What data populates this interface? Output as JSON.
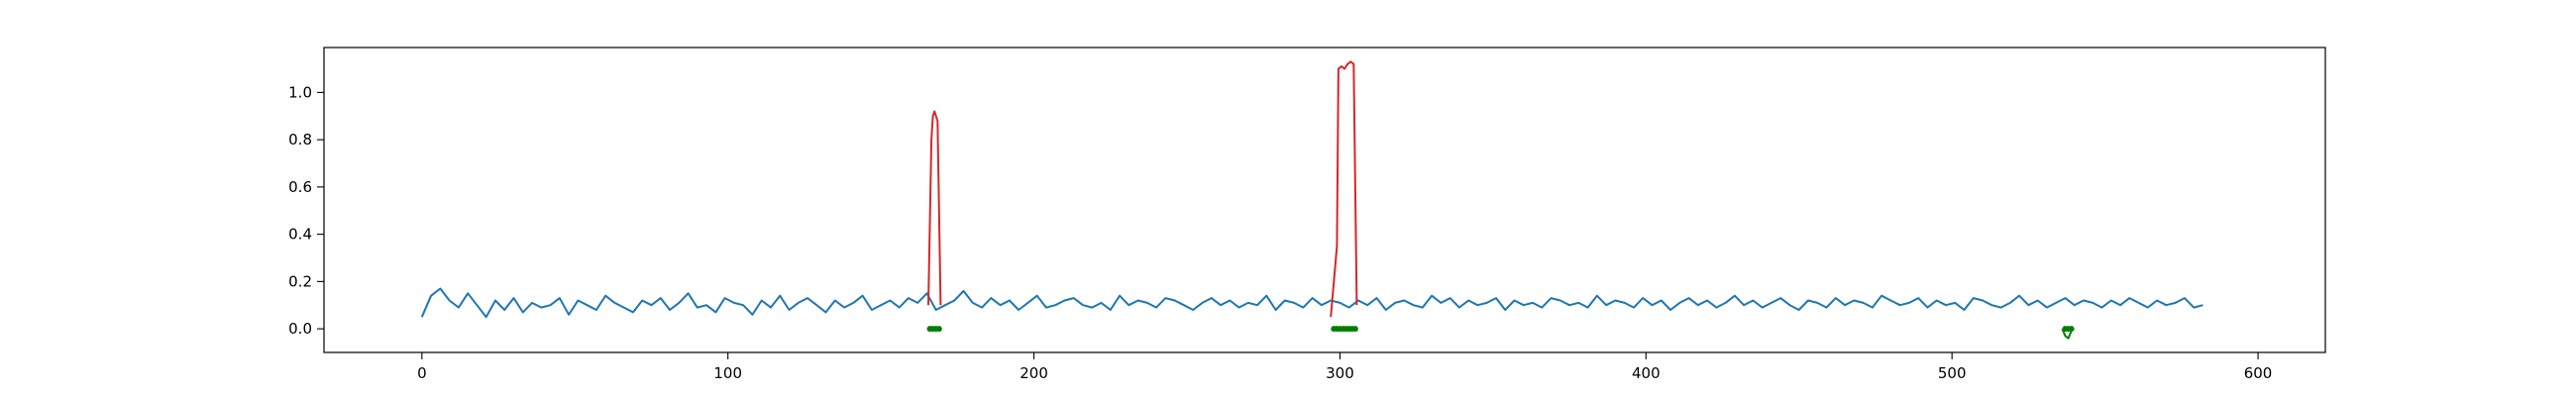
{
  "chart_data": {
    "type": "line",
    "title": "",
    "xlabel": "",
    "ylabel": "",
    "xlim": [
      -32,
      622
    ],
    "ylim": [
      -0.1,
      1.19
    ],
    "grid": false,
    "legend": "none",
    "x_ticks": [
      0,
      100,
      200,
      300,
      400,
      500,
      600
    ],
    "y_ticks": [
      0.0,
      0.2,
      0.4,
      0.6,
      0.8,
      1.0
    ],
    "x_tick_labels": [
      "0",
      "100",
      "200",
      "300",
      "400",
      "500",
      "600"
    ],
    "y_tick_labels": [
      "0.0",
      "0.2",
      "0.4",
      "0.6",
      "0.8",
      "1.0"
    ],
    "series": [
      {
        "color": "#1f77b4",
        "style": "line",
        "x_start": 0,
        "x_step": 3,
        "values": [
          0.05,
          0.14,
          0.17,
          0.12,
          0.09,
          0.15,
          0.1,
          0.05,
          0.12,
          0.08,
          0.13,
          0.07,
          0.11,
          0.09,
          0.1,
          0.13,
          0.06,
          0.12,
          0.1,
          0.08,
          0.14,
          0.11,
          0.09,
          0.07,
          0.12,
          0.1,
          0.13,
          0.08,
          0.11,
          0.15,
          0.09,
          0.1,
          0.07,
          0.13,
          0.11,
          0.1,
          0.06,
          0.12,
          0.09,
          0.14,
          0.08,
          0.11,
          0.13,
          0.1,
          0.07,
          0.12,
          0.09,
          0.11,
          0.14,
          0.08,
          0.1,
          0.12,
          0.09,
          0.13,
          0.11,
          0.15,
          0.08,
          0.1,
          0.12,
          0.16,
          0.11,
          0.09,
          0.13,
          0.1,
          0.12,
          0.08,
          0.11,
          0.14,
          0.09,
          0.1,
          0.12,
          0.13,
          0.1,
          0.09,
          0.11,
          0.08,
          0.14,
          0.1,
          0.12,
          0.11,
          0.09,
          0.13,
          0.12,
          0.1,
          0.08,
          0.11,
          0.13,
          0.1,
          0.12,
          0.09,
          0.11,
          0.1,
          0.14,
          0.08,
          0.12,
          0.11,
          0.09,
          0.13,
          0.1,
          0.12,
          0.11,
          0.09,
          0.12,
          0.1,
          0.13,
          0.08,
          0.11,
          0.12,
          0.1,
          0.09,
          0.14,
          0.11,
          0.13,
          0.09,
          0.12,
          0.1,
          0.11,
          0.13,
          0.08,
          0.12,
          0.1,
          0.11,
          0.09,
          0.13,
          0.12,
          0.1,
          0.11,
          0.09,
          0.14,
          0.1,
          0.12,
          0.11,
          0.09,
          0.13,
          0.1,
          0.12,
          0.08,
          0.11,
          0.13,
          0.1,
          0.12,
          0.09,
          0.11,
          0.14,
          0.1,
          0.12,
          0.09,
          0.11,
          0.13,
          0.1,
          0.08,
          0.12,
          0.11,
          0.09,
          0.13,
          0.1,
          0.12,
          0.11,
          0.09,
          0.14,
          0.12,
          0.1,
          0.11,
          0.13,
          0.09,
          0.12,
          0.1,
          0.11,
          0.08,
          0.13,
          0.12,
          0.1,
          0.09,
          0.11,
          0.14,
          0.1,
          0.12,
          0.09,
          0.11,
          0.13,
          0.1,
          0.12,
          0.11,
          0.09,
          0.12,
          0.1,
          0.13,
          0.11,
          0.09,
          0.12,
          0.1,
          0.11,
          0.13,
          0.09,
          0.1
        ]
      },
      {
        "color": "#d62728",
        "style": "line",
        "x": [
          165.5,
          166.5,
          167.0,
          167.5,
          168.5,
          169.5
        ],
        "values": [
          0.1,
          0.8,
          0.9,
          0.92,
          0.88,
          0.1
        ]
      },
      {
        "color": "#d62728",
        "style": "line",
        "x": [
          297.0,
          299.0,
          299.5,
          300.5,
          301.5,
          302.5,
          303.5,
          304.5,
          305.5
        ],
        "values": [
          0.05,
          0.35,
          1.1,
          1.11,
          1.1,
          1.12,
          1.13,
          1.12,
          0.1
        ]
      },
      {
        "color": "#008000",
        "style": "markers",
        "x": [
          166,
          167,
          168,
          169,
          298,
          299,
          300,
          301,
          302,
          303,
          304,
          305,
          537,
          538,
          539
        ],
        "values": [
          0,
          0,
          0,
          0,
          0,
          0,
          0,
          0,
          0,
          0,
          0,
          0,
          0,
          0,
          0
        ]
      },
      {
        "color": "#008000",
        "style": "line",
        "x": [
          536,
          537,
          538,
          539
        ],
        "values": [
          0.0,
          -0.03,
          -0.04,
          -0.01
        ]
      }
    ]
  }
}
